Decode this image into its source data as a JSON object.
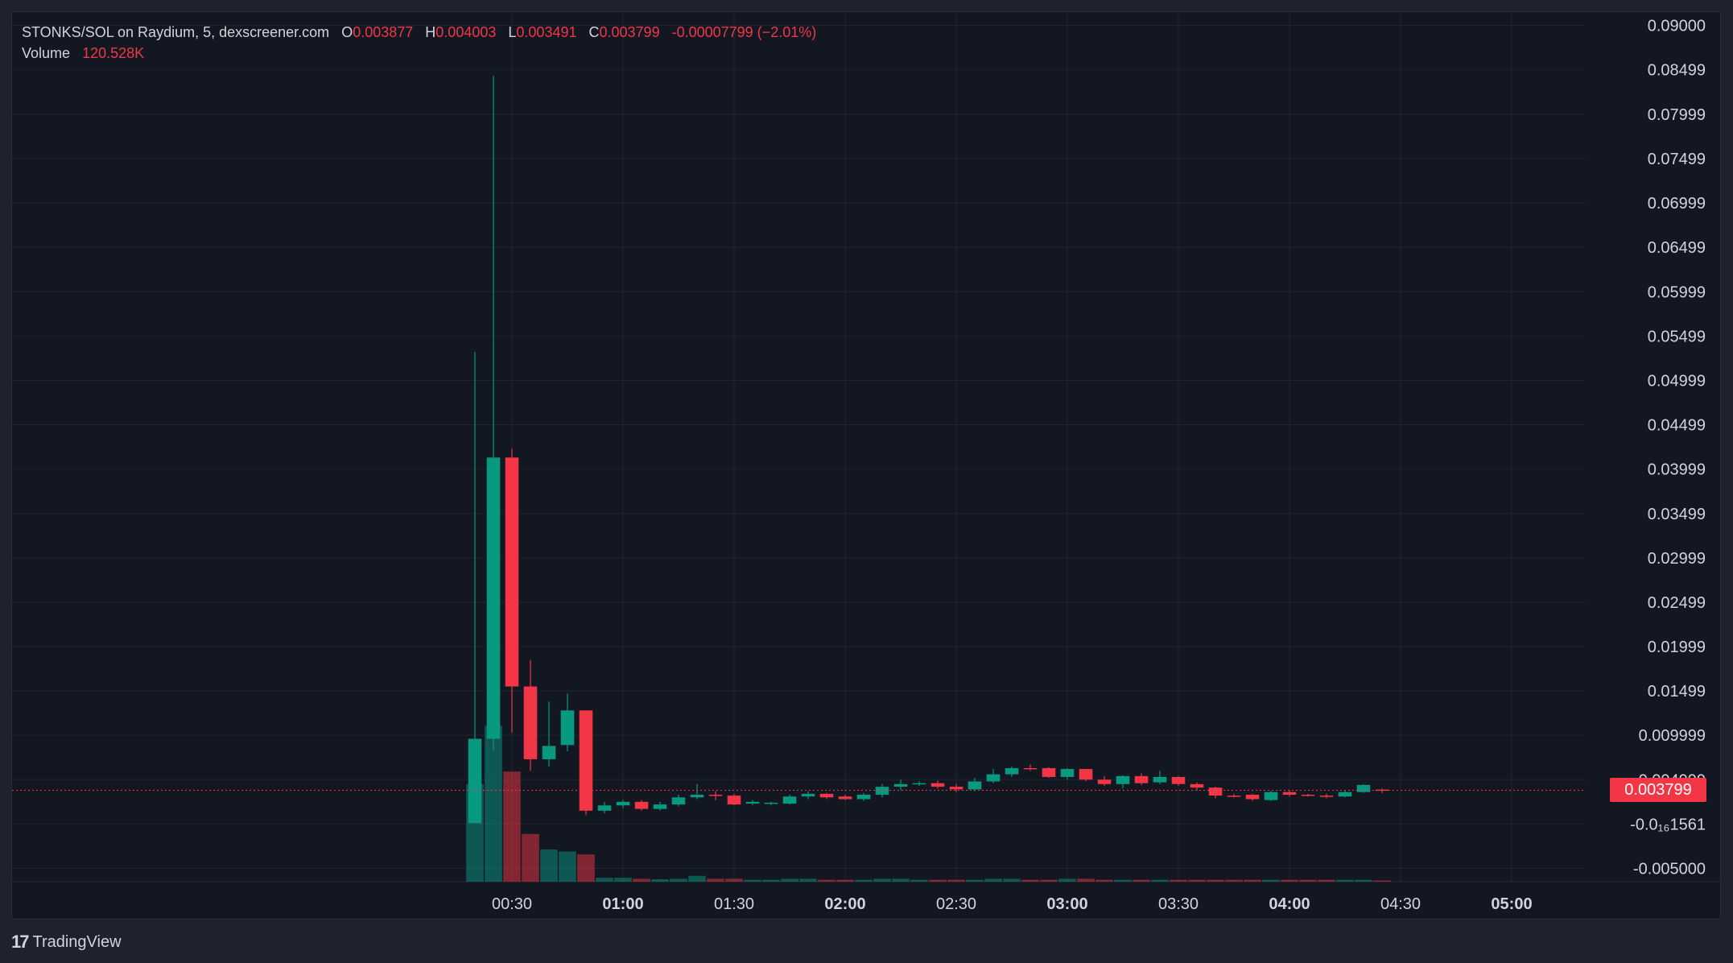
{
  "legend": {
    "symbol": "STONKS/SOL on Raydium, 5, dexscreener.com",
    "o_label": "O",
    "o_value": "0.003877",
    "h_label": "H",
    "h_value": "0.004003",
    "l_label": "L",
    "l_value": "0.003491",
    "c_label": "C",
    "c_value": "0.003799",
    "change": "-0.00007799 (−2.01%)",
    "volume_label": "Volume",
    "volume_value": "120.528K"
  },
  "last_price_label": "0.003799",
  "branding": {
    "logo": "17",
    "name": "TradingView"
  },
  "colors": {
    "up": "#089981",
    "down": "#f23645",
    "background": "#131722",
    "grid": "#1f2430",
    "text": "#d1d4dc"
  },
  "chart_data": {
    "type": "candlestick",
    "y_ticks": [
      {
        "v": 0.09,
        "label": "0.09000"
      },
      {
        "v": 0.08499,
        "label": "0.08499"
      },
      {
        "v": 0.07999,
        "label": "0.07999"
      },
      {
        "v": 0.07499,
        "label": "0.07499"
      },
      {
        "v": 0.06999,
        "label": "0.06999"
      },
      {
        "v": 0.06499,
        "label": "0.06499"
      },
      {
        "v": 0.05999,
        "label": "0.05999"
      },
      {
        "v": 0.05499,
        "label": "0.05499"
      },
      {
        "v": 0.04999,
        "label": "0.04999"
      },
      {
        "v": 0.04499,
        "label": "0.04499"
      },
      {
        "v": 0.03999,
        "label": "0.03999"
      },
      {
        "v": 0.03499,
        "label": "0.03499"
      },
      {
        "v": 0.02999,
        "label": "0.02999"
      },
      {
        "v": 0.02499,
        "label": "0.02499"
      },
      {
        "v": 0.01999,
        "label": "0.01999"
      },
      {
        "v": 0.01499,
        "label": "0.01499"
      },
      {
        "v": 0.009999,
        "label": "0.009999"
      },
      {
        "v": 0.004999,
        "label": "0.004999"
      },
      {
        "v": -1.56e-17,
        "label": "-0.0₁₆1561"
      },
      {
        "v": -0.005,
        "label": "-0.005000"
      }
    ],
    "x_ticks": [
      {
        "t": 30,
        "label": "00:30",
        "bold": false
      },
      {
        "t": 60,
        "label": "01:00",
        "bold": true
      },
      {
        "t": 90,
        "label": "01:30",
        "bold": false
      },
      {
        "t": 120,
        "label": "02:00",
        "bold": true
      },
      {
        "t": 150,
        "label": "02:30",
        "bold": false
      },
      {
        "t": 180,
        "label": "03:00",
        "bold": true
      },
      {
        "t": 210,
        "label": "03:30",
        "bold": false
      },
      {
        "t": 240,
        "label": "04:00",
        "bold": true
      },
      {
        "t": 270,
        "label": "04:30",
        "bold": false
      },
      {
        "t": 300,
        "label": "05:00",
        "bold": true
      }
    ],
    "ylim": [
      -0.0065,
      0.0915
    ],
    "xlim_minutes": [
      -105,
      320
    ],
    "last_price": 0.003799,
    "candles": [
      {
        "t": 20,
        "o": 0.0001,
        "h": 0.0532,
        "l": 0.0001,
        "c": 0.0096,
        "v": 1.0
      },
      {
        "t": 25,
        "o": 0.0096,
        "h": 0.0843,
        "l": 0.0083,
        "c": 0.0413,
        "v": 1.6
      },
      {
        "t": 30,
        "o": 0.0413,
        "h": 0.0423,
        "l": 0.0103,
        "c": 0.0155,
        "v": 1.13
      },
      {
        "t": 35,
        "o": 0.0155,
        "h": 0.0185,
        "l": 0.006,
        "c": 0.0073,
        "v": 0.49
      },
      {
        "t": 40,
        "o": 0.0073,
        "h": 0.0138,
        "l": 0.0065,
        "c": 0.0088,
        "v": 0.33
      },
      {
        "t": 45,
        "o": 0.0089,
        "h": 0.0147,
        "l": 0.0082,
        "c": 0.0128,
        "v": 0.31
      },
      {
        "t": 50,
        "o": 0.0128,
        "h": 0.0128,
        "l": 0.001,
        "c": 0.0015,
        "v": 0.28
      },
      {
        "t": 55,
        "o": 0.0015,
        "h": 0.0025,
        "l": 0.0012,
        "c": 0.0021,
        "v": 0.04
      },
      {
        "t": 60,
        "o": 0.0021,
        "h": 0.0027,
        "l": 0.0018,
        "c": 0.0025,
        "v": 0.04
      },
      {
        "t": 65,
        "o": 0.0025,
        "h": 0.0027,
        "l": 0.0015,
        "c": 0.0017,
        "v": 0.03
      },
      {
        "t": 70,
        "o": 0.0017,
        "h": 0.0025,
        "l": 0.0015,
        "c": 0.0022,
        "v": 0.025
      },
      {
        "t": 75,
        "o": 0.0022,
        "h": 0.0033,
        "l": 0.002,
        "c": 0.003,
        "v": 0.03
      },
      {
        "t": 80,
        "o": 0.003,
        "h": 0.0045,
        "l": 0.0028,
        "c": 0.0033,
        "v": 0.06
      },
      {
        "t": 85,
        "o": 0.0033,
        "h": 0.0037,
        "l": 0.0027,
        "c": 0.0032,
        "v": 0.03
      },
      {
        "t": 90,
        "o": 0.0032,
        "h": 0.0034,
        "l": 0.0021,
        "c": 0.0022,
        "v": 0.03
      },
      {
        "t": 95,
        "o": 0.0023,
        "h": 0.0027,
        "l": 0.0021,
        "c": 0.0025,
        "v": 0.02
      },
      {
        "t": 100,
        "o": 0.0023,
        "h": 0.0025,
        "l": 0.0021,
        "c": 0.0024,
        "v": 0.02
      },
      {
        "t": 105,
        "o": 0.0023,
        "h": 0.0033,
        "l": 0.0022,
        "c": 0.0031,
        "v": 0.03
      },
      {
        "t": 110,
        "o": 0.0031,
        "h": 0.0037,
        "l": 0.0028,
        "c": 0.0034,
        "v": 0.03
      },
      {
        "t": 115,
        "o": 0.0034,
        "h": 0.0035,
        "l": 0.0028,
        "c": 0.003,
        "v": 0.02
      },
      {
        "t": 120,
        "o": 0.0031,
        "h": 0.0033,
        "l": 0.0027,
        "c": 0.0028,
        "v": 0.02
      },
      {
        "t": 125,
        "o": 0.0028,
        "h": 0.0035,
        "l": 0.0026,
        "c": 0.0033,
        "v": 0.02
      },
      {
        "t": 130,
        "o": 0.0033,
        "h": 0.0045,
        "l": 0.003,
        "c": 0.0042,
        "v": 0.03
      },
      {
        "t": 135,
        "o": 0.0042,
        "h": 0.005,
        "l": 0.0038,
        "c": 0.0045,
        "v": 0.03
      },
      {
        "t": 140,
        "o": 0.0045,
        "h": 0.0048,
        "l": 0.0043,
        "c": 0.0046,
        "v": 0.02
      },
      {
        "t": 145,
        "o": 0.0046,
        "h": 0.0049,
        "l": 0.004,
        "c": 0.0042,
        "v": 0.02
      },
      {
        "t": 150,
        "o": 0.0042,
        "h": 0.0045,
        "l": 0.0036,
        "c": 0.0039,
        "v": 0.02
      },
      {
        "t": 155,
        "o": 0.0039,
        "h": 0.0052,
        "l": 0.0037,
        "c": 0.0048,
        "v": 0.02
      },
      {
        "t": 160,
        "o": 0.0048,
        "h": 0.0062,
        "l": 0.0046,
        "c": 0.0056,
        "v": 0.03
      },
      {
        "t": 165,
        "o": 0.0056,
        "h": 0.0065,
        "l": 0.0053,
        "c": 0.0063,
        "v": 0.03
      },
      {
        "t": 170,
        "o": 0.0063,
        "h": 0.0067,
        "l": 0.006,
        "c": 0.0062,
        "v": 0.02
      },
      {
        "t": 175,
        "o": 0.0063,
        "h": 0.0064,
        "l": 0.0052,
        "c": 0.0053,
        "v": 0.02
      },
      {
        "t": 180,
        "o": 0.0053,
        "h": 0.0063,
        "l": 0.005,
        "c": 0.0062,
        "v": 0.03
      },
      {
        "t": 185,
        "o": 0.0062,
        "h": 0.0062,
        "l": 0.0048,
        "c": 0.005,
        "v": 0.03
      },
      {
        "t": 190,
        "o": 0.005,
        "h": 0.0054,
        "l": 0.0043,
        "c": 0.0045,
        "v": 0.02
      },
      {
        "t": 195,
        "o": 0.0045,
        "h": 0.0055,
        "l": 0.004,
        "c": 0.0054,
        "v": 0.02
      },
      {
        "t": 200,
        "o": 0.0054,
        "h": 0.0057,
        "l": 0.0044,
        "c": 0.0046,
        "v": 0.02
      },
      {
        "t": 205,
        "o": 0.0047,
        "h": 0.006,
        "l": 0.0045,
        "c": 0.0053,
        "v": 0.02
      },
      {
        "t": 210,
        "o": 0.0053,
        "h": 0.0054,
        "l": 0.0043,
        "c": 0.0045,
        "v": 0.02
      },
      {
        "t": 215,
        "o": 0.0045,
        "h": 0.0047,
        "l": 0.0038,
        "c": 0.0041,
        "v": 0.02
      },
      {
        "t": 220,
        "o": 0.0041,
        "h": 0.0042,
        "l": 0.0029,
        "c": 0.0032,
        "v": 0.02
      },
      {
        "t": 225,
        "o": 0.0032,
        "h": 0.0034,
        "l": 0.003,
        "c": 0.0031,
        "v": 0.02
      },
      {
        "t": 230,
        "o": 0.0033,
        "h": 0.0034,
        "l": 0.0026,
        "c": 0.0028,
        "v": 0.02
      },
      {
        "t": 235,
        "o": 0.0027,
        "h": 0.0037,
        "l": 0.0026,
        "c": 0.0036,
        "v": 0.02
      },
      {
        "t": 240,
        "o": 0.0036,
        "h": 0.0038,
        "l": 0.0031,
        "c": 0.0033,
        "v": 0.02
      },
      {
        "t": 245,
        "o": 0.0033,
        "h": 0.0034,
        "l": 0.0031,
        "c": 0.0032,
        "v": 0.02
      },
      {
        "t": 250,
        "o": 0.0032,
        "h": 0.0034,
        "l": 0.0029,
        "c": 0.0031,
        "v": 0.02
      },
      {
        "t": 255,
        "o": 0.0031,
        "h": 0.0038,
        "l": 0.003,
        "c": 0.0036,
        "v": 0.02
      },
      {
        "t": 260,
        "o": 0.0036,
        "h": 0.0045,
        "l": 0.0035,
        "c": 0.0044,
        "v": 0.02
      },
      {
        "t": 265,
        "o": 0.003877,
        "h": 0.004003,
        "l": 0.003491,
        "c": 0.003799,
        "v": 0.01
      }
    ]
  }
}
